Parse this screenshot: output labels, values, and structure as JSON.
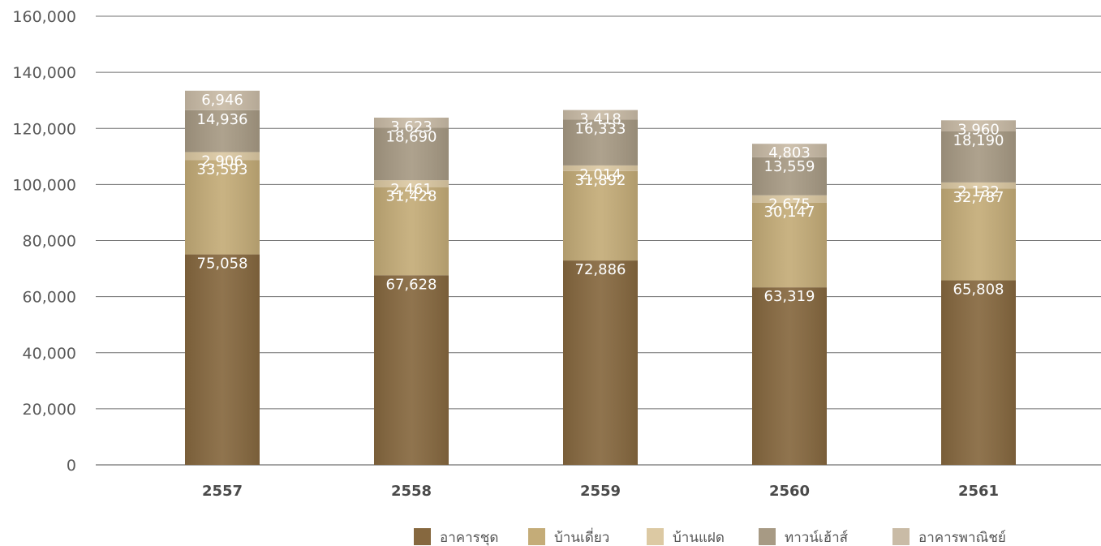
{
  "chart_data": {
    "type": "bar",
    "stacked": true,
    "categories": [
      "2557",
      "2558",
      "2559",
      "2560",
      "2561"
    ],
    "series": [
      {
        "name": "อาคารชุด",
        "color": "#86683f",
        "values": [
          75058,
          67628,
          72886,
          63319,
          65808
        ]
      },
      {
        "name": "บ้านเดี่ยว",
        "color": "#c4ac78",
        "values": [
          33593,
          31428,
          31892,
          30147,
          32787
        ]
      },
      {
        "name": "บ้านแฝด",
        "color": "#dcc9a3",
        "values": [
          2906,
          2461,
          2014,
          2675,
          2132
        ]
      },
      {
        "name": "ทาวน์เฮ้าส์",
        "color": "#a79a84",
        "values": [
          14936,
          18690,
          16333,
          13559,
          18190
        ]
      },
      {
        "name": "อาคารพาณิชย์",
        "color": "#c9bba6",
        "values": [
          6946,
          3623,
          3418,
          4803,
          3960
        ]
      }
    ],
    "data_labels": [
      [
        "75,058",
        "67,628",
        "72,886",
        "63,319",
        "65,808"
      ],
      [
        "33,593",
        "31,428",
        "31,892",
        "30,147",
        "32,787"
      ],
      [
        "2,906",
        "2,461",
        "2,014",
        "2,675",
        "2,132"
      ],
      [
        "14,936",
        "18,690",
        "16,333",
        "13,559",
        "18,190"
      ],
      [
        "6,946",
        "3,623",
        "3,418",
        "4,803",
        "3,960"
      ]
    ],
    "y_ticks": [
      "0",
      "20,000",
      "40,000",
      "60,000",
      "80,000",
      "100,000",
      "120,000",
      "140,000",
      "160,000"
    ],
    "ylim": [
      0,
      160000
    ],
    "grid": true,
    "legend_position": "bottom-right"
  }
}
